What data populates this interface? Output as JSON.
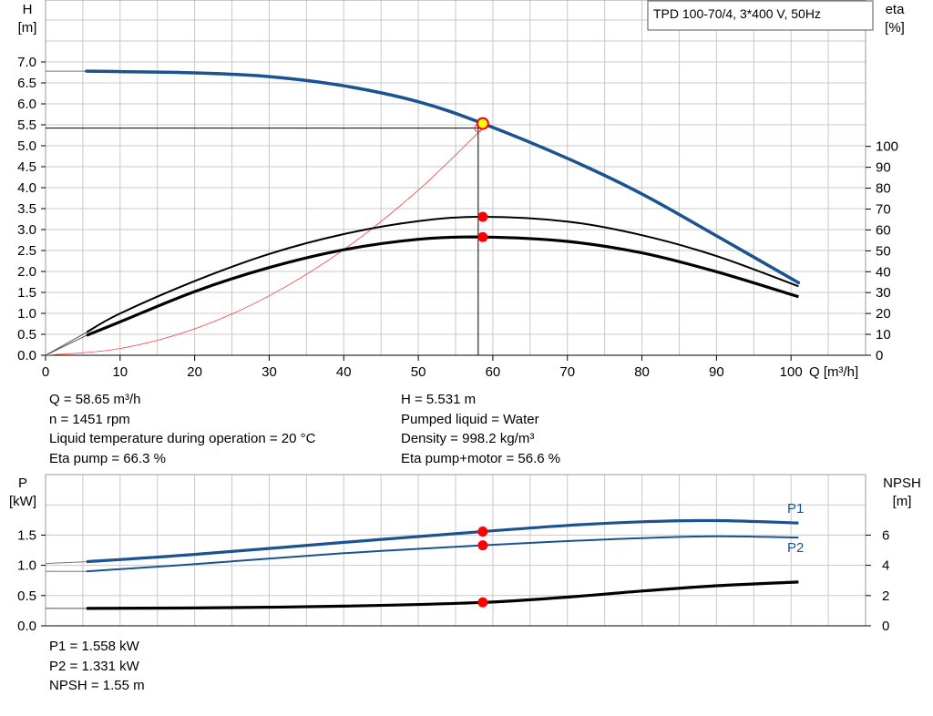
{
  "colors": {
    "head_curve": "#1a5390",
    "power_curve": "#1a5390",
    "curve_black": "#000000",
    "system_curve": "#ff3b3b",
    "duty_point": "#ff0000",
    "duty_point_main": "#ffff00",
    "grid": "#c8c8c8"
  },
  "info_top_left": [
    "Q = 58.65 m³/h",
    "n = 1451 rpm",
    "Liquid temperature during operation = 20 °C",
    "Eta pump = 66.3 %"
  ],
  "info_top_right": [
    "H = 5.531 m",
    "Pumped liquid = Water",
    "Density = 998.2 kg/m³",
    "Eta pump+motor = 56.6 %"
  ],
  "info_bottom": [
    "P1 = 1.558 kW",
    "P2 = 1.331 kW",
    "NPSH = 1.55 m"
  ],
  "chart_data": [
    {
      "type": "line",
      "title": "TPD 100-70/4, 3*400 V, 50Hz",
      "xlabel": "Q [m³/h]",
      "ylabel_left": [
        "H",
        "[m]"
      ],
      "ylabel_right": [
        "eta",
        "[%]"
      ],
      "xlim": [
        0,
        110
      ],
      "ylim_left": [
        0,
        7.5
      ],
      "ylim_right": [
        0,
        148
      ],
      "x_ticks": [
        "0",
        "10",
        "20",
        "30",
        "40",
        "50",
        "60",
        "70",
        "80",
        "90",
        "100"
      ],
      "y_left_ticks": [
        "0.0",
        "0.5",
        "1.0",
        "1.5",
        "2.0",
        "2.5",
        "3.0",
        "3.5",
        "4.0",
        "4.5",
        "5.0",
        "5.5",
        "6.0",
        "6.5",
        "7.0"
      ],
      "y_right_ticks": [
        "0",
        "10",
        "20",
        "30",
        "40",
        "50",
        "60",
        "70",
        "80",
        "90",
        "100"
      ],
      "grid": true,
      "series": [
        {
          "key": "head",
          "axis": "left",
          "x": [
            5.5,
            10,
            20,
            30,
            40,
            50,
            58.65,
            70,
            80,
            90,
            101
          ],
          "y": [
            6.78,
            6.77,
            6.74,
            6.65,
            6.43,
            6.05,
            5.531,
            4.7,
            3.85,
            2.85,
            1.73
          ]
        },
        {
          "key": "eta_pump",
          "axis": "right",
          "x": [
            5.5,
            10,
            20,
            30,
            40,
            50,
            58.65,
            70,
            80,
            90,
            101
          ],
          "y": [
            11,
            20,
            35.5,
            48.5,
            58,
            64.2,
            66.3,
            64,
            57.5,
            47.5,
            33
          ]
        },
        {
          "key": "eta_total",
          "axis": "right",
          "x": [
            5.5,
            10,
            20,
            30,
            40,
            50,
            58.65,
            70,
            80,
            90,
            101
          ],
          "y": [
            9.5,
            16,
            30.5,
            42,
            50.5,
            55.5,
            56.6,
            54.5,
            49,
            40,
            28
          ]
        },
        {
          "key": "system",
          "axis": "left",
          "x": [
            0,
            10,
            20,
            30,
            40,
            50,
            58.65
          ],
          "y": [
            0,
            0.16,
            0.63,
            1.42,
            2.52,
            3.94,
            5.42
          ]
        }
      ],
      "duty_point": {
        "x": 58.65,
        "head": 5.531,
        "eta_pump": 66.3,
        "eta_total": 56.6
      }
    },
    {
      "type": "line",
      "ylabel_left": [
        "P",
        "[kW]"
      ],
      "ylabel_right": [
        "NPSH",
        "[m]"
      ],
      "xlim": [
        0,
        110
      ],
      "ylim_left": [
        0,
        2.0
      ],
      "ylim_right": [
        0,
        8
      ],
      "y_left_ticks": [
        "0.0",
        "0.5",
        "1.0",
        "1.5"
      ],
      "y_right_ticks": [
        "0",
        "2",
        "4",
        "6"
      ],
      "grid": true,
      "series": [
        {
          "name": "P1",
          "axis": "left",
          "x": [
            5.5,
            20,
            40,
            58.65,
            70,
            80,
            90,
            101
          ],
          "y": [
            1.06,
            1.18,
            1.38,
            1.558,
            1.66,
            1.72,
            1.74,
            1.7
          ]
        },
        {
          "name": "P2",
          "axis": "left",
          "x": [
            5.5,
            20,
            40,
            58.65,
            70,
            80,
            90,
            101
          ],
          "y": [
            0.9,
            1.02,
            1.2,
            1.331,
            1.4,
            1.45,
            1.48,
            1.46
          ]
        },
        {
          "key": "npsh",
          "axis": "right",
          "x": [
            5.5,
            20,
            40,
            58.65,
            70,
            80,
            90,
            101
          ],
          "y": [
            1.15,
            1.18,
            1.3,
            1.55,
            1.9,
            2.3,
            2.65,
            2.9
          ]
        }
      ],
      "duty_point": {
        "x": 58.65,
        "p1": 1.558,
        "p2": 1.331,
        "npsh": 1.55
      }
    }
  ]
}
